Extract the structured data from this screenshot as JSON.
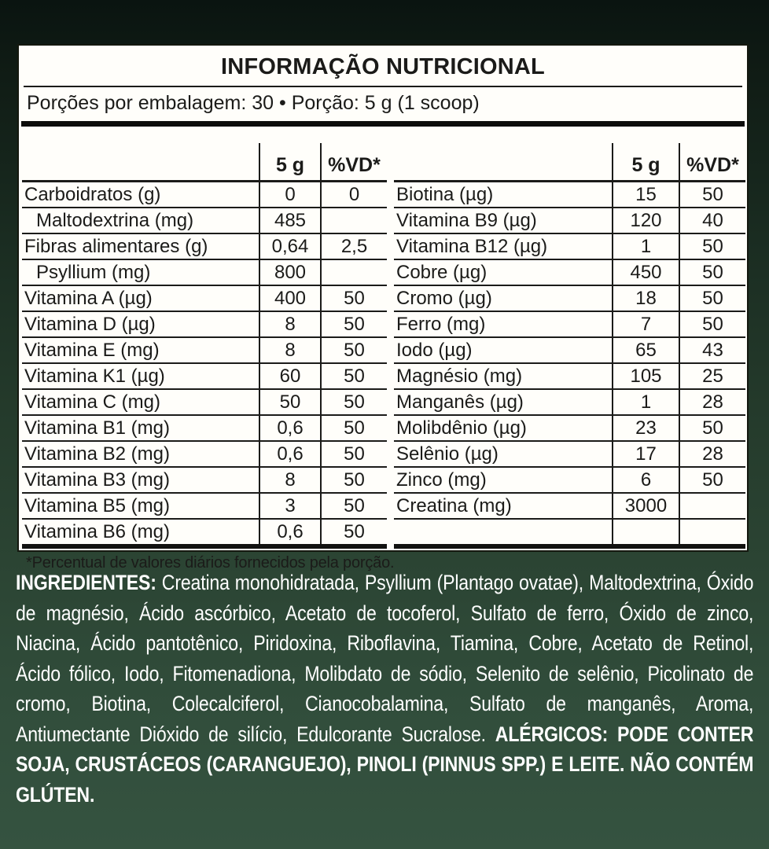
{
  "panel": {
    "title": "INFORMAÇÃO NUTRICIONAL",
    "servings_line": "Porções por embalagem: 30 • Porção: 5 g (1 scoop)",
    "footnote": "*Percentual de valores diários fornecidos pela porção."
  },
  "tables": [
    {
      "id": "left",
      "columns": [
        "",
        "5 g",
        "%VD*"
      ],
      "rows": [
        {
          "name": "Carboidratos (g)",
          "amount": "0",
          "vd": "0",
          "indent": false
        },
        {
          "name": "Maltodextrina (mg)",
          "amount": "485",
          "vd": "",
          "indent": true
        },
        {
          "name": "Fibras alimentares (g)",
          "amount": "0,64",
          "vd": "2,5",
          "indent": false
        },
        {
          "name": "Psyllium (mg)",
          "amount": "800",
          "vd": "",
          "indent": true
        },
        {
          "name": "Vitamina A (µg)",
          "amount": "400",
          "vd": "50",
          "indent": false
        },
        {
          "name": "Vitamina D (µg)",
          "amount": "8",
          "vd": "50",
          "indent": false
        },
        {
          "name": "Vitamina E (mg)",
          "amount": "8",
          "vd": "50",
          "indent": false
        },
        {
          "name": "Vitamina K1 (µg)",
          "amount": "60",
          "vd": "50",
          "indent": false
        },
        {
          "name": "Vitamina C (mg)",
          "amount": "50",
          "vd": "50",
          "indent": false
        },
        {
          "name": "Vitamina B1 (mg)",
          "amount": "0,6",
          "vd": "50",
          "indent": false
        },
        {
          "name": "Vitamina B2 (mg)",
          "amount": "0,6",
          "vd": "50",
          "indent": false
        },
        {
          "name": "Vitamina B3 (mg)",
          "amount": "8",
          "vd": "50",
          "indent": false
        },
        {
          "name": "Vitamina B5 (mg)",
          "amount": "3",
          "vd": "50",
          "indent": false
        },
        {
          "name": "Vitamina B6 (mg)",
          "amount": "0,6",
          "vd": "50",
          "indent": false
        }
      ]
    },
    {
      "id": "right",
      "columns": [
        "",
        "5 g",
        "%VD*"
      ],
      "rows": [
        {
          "name": "Biotina (µg)",
          "amount": "15",
          "vd": "50",
          "indent": false
        },
        {
          "name": "Vitamina B9 (µg)",
          "amount": "120",
          "vd": "40",
          "indent": false
        },
        {
          "name": "Vitamina B12 (µg)",
          "amount": "1",
          "vd": "50",
          "indent": false
        },
        {
          "name": "Cobre (µg)",
          "amount": "450",
          "vd": "50",
          "indent": false
        },
        {
          "name": "Cromo (µg)",
          "amount": "18",
          "vd": "50",
          "indent": false
        },
        {
          "name": "Ferro (mg)",
          "amount": "7",
          "vd": "50",
          "indent": false
        },
        {
          "name": "Iodo (µg)",
          "amount": "65",
          "vd": "43",
          "indent": false
        },
        {
          "name": "Magnésio (mg)",
          "amount": "105",
          "vd": "25",
          "indent": false
        },
        {
          "name": "Manganês (µg)",
          "amount": "1",
          "vd": "28",
          "indent": false
        },
        {
          "name": "Molibdênio (µg)",
          "amount": "23",
          "vd": "50",
          "indent": false
        },
        {
          "name": "Selênio (µg)",
          "amount": "17",
          "vd": "28",
          "indent": false
        },
        {
          "name": "Zinco (mg)",
          "amount": "6",
          "vd": "50",
          "indent": false
        },
        {
          "name": "Creatina (mg)",
          "amount": "3000",
          "vd": "",
          "indent": false
        },
        {
          "name": "",
          "amount": "",
          "vd": "",
          "indent": false,
          "empty": true
        }
      ]
    }
  ],
  "ingredients": {
    "label": "INGREDIENTES:",
    "text": "Creatina monohidratada, Psyllium (Plantago ovatae), Maltodextrina, Óxido de magnésio, Ácido ascórbico, Acetato de tocoferol, Sulfato de ferro, Óxido de zinco, Niacina, Ácido pantotênico, Piridoxina, Riboflavina, Tiamina, Cobre, Acetato de Retinol, Ácido fólico, Iodo, Fitomenadiona, Molibdato de sódio, Selenito de selênio, Picolinato de cromo, Biotina, Colecalciferol, Cianocobalamina, Sulfato de manganês, Aroma, Antiumectante Dióxido de silício, Edulcorante Sucralose.",
    "allergens": "ALÉRGICOS: PODE CONTER SOJA, CRUSTÁCEOS (CARANGUEJO), PINOLI (PINNUS SPP.) E LEITE. NÃO CONTÉM GLÚTEN."
  },
  "colors": {
    "background_top": "#0a1410",
    "background_bottom": "#355340",
    "panel": "#fffefa",
    "ink": "#1b1b19",
    "ingredients_text": "#ffffff"
  }
}
